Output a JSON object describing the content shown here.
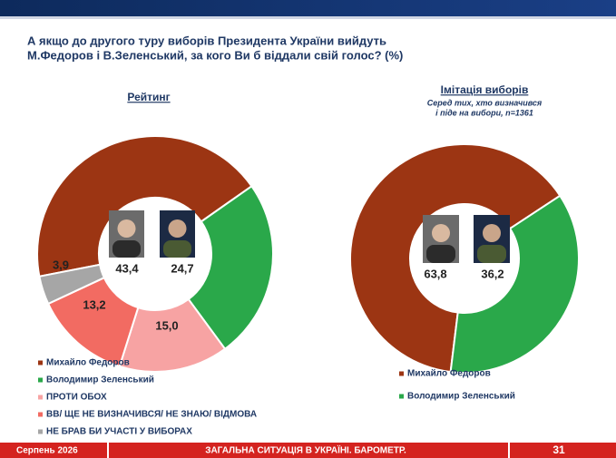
{
  "title": [
    "А якщо до другого туру виборів Президента України вийдуть",
    "М.Федоров і В.Зеленський, за кого Ви б віддали свій голос? (%)"
  ],
  "chart_data": [
    {
      "type": "pie",
      "title": "Рейтинг",
      "categories": [
        "Михайло Федоров",
        "Володимир Зеленський",
        "ПРОТИ ОБОХ",
        "ВВ/ ЩЕ НЕ ВИЗНАЧИВСЯ/ НЕ ЗНАЮ/ ВІДМОВА",
        "НЕ БРАВ БИ УЧАСТІ У ВИБОРАХ"
      ],
      "values": [
        43.4,
        24.7,
        15.0,
        13.2,
        3.9
      ],
      "value_labels": [
        "43,4",
        "24,7",
        "15,0",
        "13,2",
        "3,9"
      ],
      "colors": [
        "#9c3513",
        "#2aa84a",
        "#f7a3a3",
        "#f26b62",
        "#a6a6a6"
      ]
    },
    {
      "type": "pie",
      "title": "Імітація виборів",
      "subtitle": [
        "Серед тих, хто визначився",
        "і піде на вибори, n=1361"
      ],
      "categories": [
        "Михайло Федоров",
        "Володимир Зеленський"
      ],
      "values": [
        63.8,
        36.2
      ],
      "value_labels": [
        "63,8",
        "36,2"
      ],
      "colors": [
        "#9c3513",
        "#2aa84a"
      ]
    }
  ],
  "footer": {
    "date": "Серпень 2026",
    "section": "ЗАГАЛЬНА СИТУАЦІЯ В УКРАЇНІ. БАРОМЕТР.",
    "page": 31
  }
}
